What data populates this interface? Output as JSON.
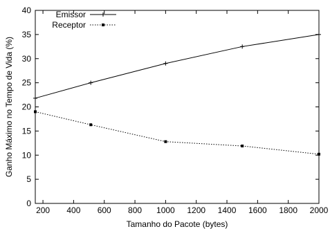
{
  "chart_data": {
    "type": "line",
    "xlabel": "Tamanho do Pacote (bytes)",
    "ylabel": "Ganho Máximo no Tempo de Vida (%)",
    "xlim": [
      150,
      2000
    ],
    "ylim": [
      0,
      40
    ],
    "x_ticks": [
      200,
      400,
      600,
      800,
      1000,
      1200,
      1400,
      1600,
      1800,
      2000
    ],
    "y_ticks": [
      0,
      5,
      10,
      15,
      20,
      25,
      30,
      35,
      40
    ],
    "grid": false,
    "legend_position": "top-left",
    "series": [
      {
        "name": "Emissor",
        "line_style": "solid",
        "marker": "plus",
        "color": "#000000",
        "x": [
          150,
          512,
          1000,
          1500,
          2000
        ],
        "y": [
          21.8,
          25.0,
          29.0,
          32.5,
          35.0
        ]
      },
      {
        "name": "Receptor",
        "line_style": "dotted",
        "marker": "square",
        "color": "#000000",
        "x": [
          150,
          512,
          1000,
          1500,
          2000
        ],
        "y": [
          19.0,
          16.3,
          12.8,
          11.9,
          10.2
        ]
      }
    ]
  }
}
